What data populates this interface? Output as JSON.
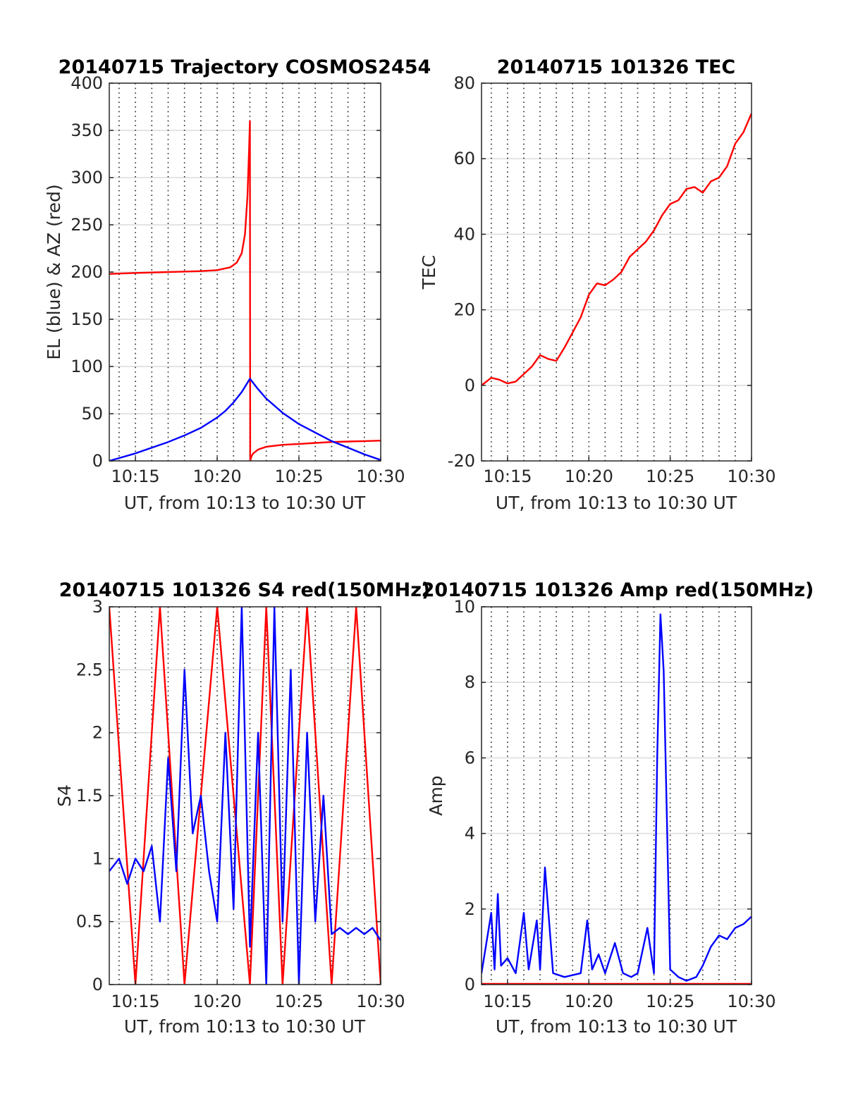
{
  "figure": {
    "panels": [
      {
        "id": "trajectory",
        "title": "20140715 Trajectory COSMOS2454",
        "xlabel": "UT, from 10:13 to 10:30 UT",
        "ylabel": "EL (blue) & AZ (red)"
      },
      {
        "id": "tec",
        "title": "20140715 101326 TEC",
        "xlabel": "UT, from 10:13 to 10:30 UT",
        "ylabel": "TEC"
      },
      {
        "id": "s4",
        "title": "20140715 101326 S4 red(150MHz)",
        "xlabel": "UT, from 10:13 to 10:30 UT",
        "ylabel": "S4"
      },
      {
        "id": "amp",
        "title": "20140715 101326 Amp red(150MHz)",
        "xlabel": "UT, from 10:13 to 10:30 UT",
        "ylabel": "Amp"
      }
    ]
  },
  "chart_data": [
    {
      "type": "line",
      "title": "20140715 Trajectory COSMOS2454",
      "xlabel": "UT, from 10:13 to 10:30 UT",
      "ylabel": "EL (blue) & AZ (red)",
      "xlim": [
        13.4,
        30.0
      ],
      "ylim": [
        0,
        400
      ],
      "x_unit": "minutes after 10:00 UT",
      "xticks": [
        15,
        20,
        25,
        30
      ],
      "xtick_labels": [
        "10:15",
        "10:20",
        "10:25",
        "10:30"
      ],
      "yticks": [
        0,
        50,
        100,
        150,
        200,
        250,
        300,
        350,
        400
      ],
      "ytick_labels": [
        "0",
        "50",
        "100",
        "150",
        "200",
        "250",
        "300",
        "350",
        "400"
      ],
      "grid": true,
      "series": [
        {
          "color": "#ff0000",
          "x": [
            13.4,
            15,
            17,
            19,
            20,
            20.8,
            21.2,
            21.5,
            21.7,
            21.85,
            21.95,
            22.0,
            22.02,
            22.05,
            22.1,
            22.2,
            22.5,
            23,
            24,
            25,
            26,
            27,
            28,
            29,
            30
          ],
          "values": [
            198,
            199,
            200,
            201,
            202,
            205,
            210,
            220,
            240,
            280,
            330,
            360,
            0,
            2,
            5,
            8,
            12,
            15,
            17,
            18,
            19,
            20,
            20.5,
            21,
            21.5
          ]
        },
        {
          "color": "#0000ff",
          "x": [
            13.4,
            14,
            15,
            16,
            17,
            18,
            19,
            20,
            20.5,
            21,
            21.5,
            22.0,
            22.5,
            23,
            24,
            25,
            26,
            27,
            28,
            29,
            30
          ],
          "values": [
            0,
            3,
            8,
            14,
            20,
            27,
            35,
            46,
            53,
            62,
            73,
            87,
            76,
            66,
            51,
            39,
            30,
            21,
            14,
            7,
            1
          ]
        }
      ]
    },
    {
      "type": "line",
      "title": "20140715 101326 TEC",
      "xlabel": "UT, from 10:13 to 10:30 UT",
      "ylabel": "TEC",
      "xlim": [
        13.4,
        30.0
      ],
      "ylim": [
        -20,
        80
      ],
      "x_unit": "minutes after 10:00 UT",
      "xticks": [
        15,
        20,
        25,
        30
      ],
      "xtick_labels": [
        "10:15",
        "10:20",
        "10:25",
        "10:30"
      ],
      "yticks": [
        -20,
        0,
        20,
        40,
        60,
        80
      ],
      "ytick_labels": [
        "-20",
        "0",
        "20",
        "40",
        "60",
        "80"
      ],
      "grid": true,
      "series": [
        {
          "color": "#ff0000",
          "x": [
            13.4,
            14,
            14.5,
            15,
            15.5,
            16,
            16.5,
            17,
            17.5,
            18,
            18.5,
            19,
            19.5,
            20,
            20.5,
            21,
            21.5,
            22,
            22.5,
            23,
            23.5,
            24,
            24.5,
            25,
            25.5,
            26,
            26.5,
            27,
            27.5,
            28,
            28.5,
            29,
            29.5,
            30
          ],
          "values": [
            0,
            2,
            1.5,
            0.5,
            1,
            3,
            5,
            8,
            7,
            6.5,
            10,
            14,
            18,
            24,
            27,
            26.5,
            28,
            30,
            34,
            36,
            38,
            41,
            45,
            48,
            49,
            52,
            52.5,
            51,
            54,
            55,
            58,
            64,
            67,
            72
          ]
        }
      ]
    },
    {
      "type": "line",
      "title": "20140715 101326 S4 red(150MHz)",
      "xlabel": "UT, from 10:13 to 10:30 UT",
      "ylabel": "S4",
      "xlim": [
        13.4,
        30.0
      ],
      "ylim": [
        0,
        3
      ],
      "x_unit": "minutes after 10:00 UT",
      "xticks": [
        15,
        20,
        25,
        30
      ],
      "xtick_labels": [
        "10:15",
        "10:20",
        "10:25",
        "10:30"
      ],
      "yticks": [
        0,
        0.5,
        1,
        1.5,
        2,
        2.5,
        3
      ],
      "ytick_labels": [
        "0",
        "0.5",
        "1",
        "1.5",
        "2",
        "2.5",
        "3"
      ],
      "grid": true,
      "series": [
        {
          "color": "#ff0000",
          "x": [
            13.4,
            15,
            16.5,
            18,
            20,
            22,
            23,
            24,
            25.5,
            27,
            28.5,
            30
          ],
          "values": [
            3,
            0,
            3,
            0,
            3,
            0,
            3,
            0,
            3,
            0,
            3,
            0
          ]
        },
        {
          "color": "#0000ff",
          "x": [
            13.4,
            14,
            14.5,
            15,
            15.5,
            16,
            16.5,
            17,
            17.5,
            18,
            18.5,
            19,
            19.5,
            20,
            20.5,
            21,
            21.5,
            22,
            22.5,
            23,
            23.5,
            24,
            24.5,
            25,
            25.5,
            26,
            26.5,
            27,
            27.5,
            28,
            28.5,
            29,
            29.5,
            30
          ],
          "values": [
            0.9,
            1.0,
            0.8,
            1.0,
            0.9,
            1.1,
            0.5,
            1.8,
            0.9,
            2.5,
            1.2,
            1.5,
            0.9,
            0.5,
            2.0,
            0.6,
            3.0,
            0.3,
            2.0,
            0.0,
            3.0,
            0.5,
            2.5,
            0.0,
            2.0,
            0.5,
            1.5,
            0.4,
            0.45,
            0.4,
            0.45,
            0.4,
            0.45,
            0.35
          ]
        }
      ]
    },
    {
      "type": "line",
      "title": "20140715 101326 Amp red(150MHz)",
      "xlabel": "UT, from 10:13 to 10:30 UT",
      "ylabel": "Amp",
      "xlim": [
        13.4,
        30.0
      ],
      "ylim": [
        0,
        10
      ],
      "x_unit": "minutes after 10:00 UT",
      "xticks": [
        15,
        20,
        25,
        30
      ],
      "xtick_labels": [
        "10:15",
        "10:20",
        "10:25",
        "10:30"
      ],
      "yticks": [
        0,
        2,
        4,
        6,
        8,
        10
      ],
      "ytick_labels": [
        "0",
        "2",
        "4",
        "6",
        "8",
        "10"
      ],
      "grid": true,
      "series": [
        {
          "color": "#ff0000",
          "x": [
            13.4,
            30.0
          ],
          "values": [
            0.02,
            0.02
          ]
        },
        {
          "color": "#0000ff",
          "x": [
            13.4,
            14.0,
            14.2,
            14.4,
            14.6,
            15.0,
            15.5,
            16.0,
            16.3,
            16.8,
            17.0,
            17.3,
            17.8,
            18.5,
            19.5,
            19.9,
            20.2,
            20.6,
            21.0,
            21.6,
            22.1,
            22.6,
            23.0,
            23.6,
            24.0,
            24.2,
            24.4,
            24.6,
            25.0,
            25.5,
            26.0,
            26.6,
            27.0,
            27.5,
            28.0,
            28.5,
            29.0,
            29.5,
            30.0
          ],
          "values": [
            0.3,
            1.9,
            0.4,
            2.4,
            0.5,
            0.7,
            0.3,
            1.9,
            0.4,
            1.7,
            0.4,
            3.1,
            0.3,
            0.2,
            0.3,
            1.7,
            0.4,
            0.8,
            0.3,
            1.1,
            0.3,
            0.2,
            0.3,
            1.5,
            0.3,
            6.0,
            9.8,
            8.3,
            0.4,
            0.2,
            0.1,
            0.2,
            0.5,
            1.0,
            1.3,
            1.2,
            1.5,
            1.6,
            1.8
          ]
        }
      ]
    }
  ]
}
